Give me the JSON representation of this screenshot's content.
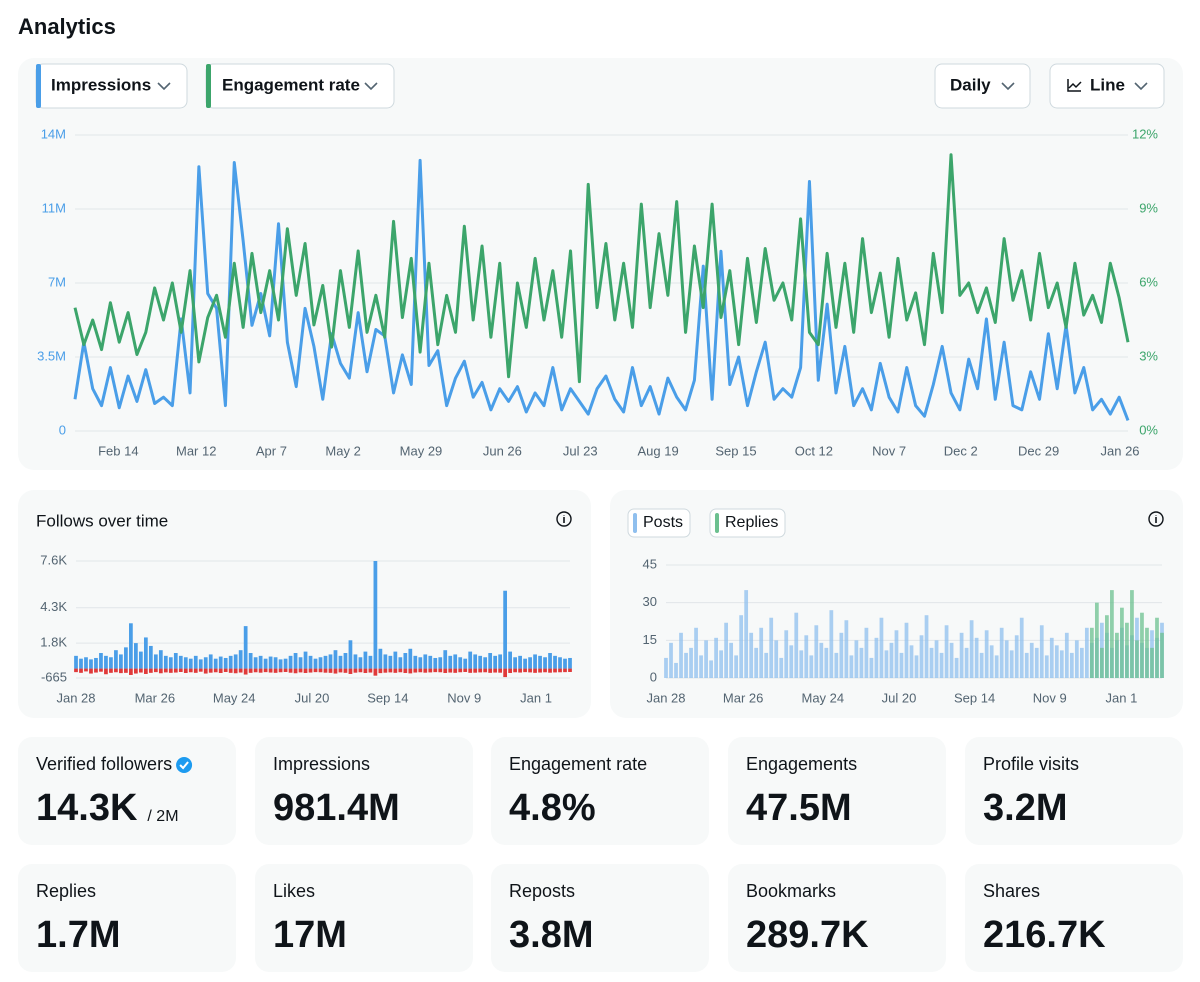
{
  "header": {
    "title": "Analytics"
  },
  "controls": {
    "interval": "Daily",
    "view": "Line"
  },
  "chart_data": [
    {
      "type": "line",
      "series": [
        {
          "name": "Impressions",
          "color": "#4a9ee8",
          "values": [
            1.5,
            4.2,
            2.0,
            1.2,
            3.0,
            1.1,
            2.6,
            1.4,
            2.9,
            1.3,
            1.6,
            1.2,
            5.3,
            1.8,
            12.5,
            6.5,
            5.8,
            1.2,
            12.7,
            9.0,
            5.0,
            6.5,
            4.5,
            9.8,
            4.2,
            2.1,
            5.8,
            4.0,
            1.5,
            4.6,
            3.2,
            2.5,
            5.6,
            2.8,
            4.8,
            4.5,
            1.8,
            3.6,
            2.2,
            12.8,
            3.1,
            3.8,
            1.2,
            2.5,
            3.3,
            1.6,
            2.3,
            1.0,
            2.0,
            1.4,
            2.1,
            0.9,
            1.8,
            1.2,
            3.0,
            1.0,
            2.0,
            1.4,
            0.8,
            2.0,
            2.6,
            1.5,
            0.9,
            3.0,
            1.2,
            2.1,
            0.8,
            2.5,
            1.6,
            1.0,
            2.4,
            7.8,
            1.5,
            8.5,
            2.2,
            3.5,
            1.2,
            2.8,
            4.2,
            1.5,
            2.0,
            1.6,
            3.0,
            11.8,
            2.4,
            6.0,
            1.8,
            4.0,
            1.2,
            2.0,
            1.0,
            3.2,
            1.6,
            0.9,
            3.0,
            1.2,
            0.7,
            2.2,
            4.0,
            1.8,
            1.0,
            3.4,
            2.0,
            5.3,
            1.5,
            4.2,
            1.2,
            1.0,
            2.8,
            1.5,
            4.6,
            2.0,
            5.0,
            1.8,
            3.0,
            1.0,
            1.5,
            0.8,
            1.6,
            0.5
          ]
        },
        {
          "name": "Engagement rate",
          "color": "#3ca56b",
          "axis": "y2",
          "values": [
            5.0,
            3.5,
            4.5,
            3.3,
            5.2,
            3.6,
            4.8,
            3.1,
            4.0,
            5.8,
            4.5,
            6.0,
            4.0,
            6.5,
            2.8,
            4.6,
            5.5,
            3.8,
            6.8,
            4.2,
            7.2,
            4.8,
            6.5,
            4.5,
            8.2,
            5.5,
            7.6,
            4.3,
            5.9,
            3.4,
            6.5,
            4.2,
            7.3,
            4.0,
            5.5,
            3.8,
            8.5,
            4.6,
            7.0,
            3.2,
            6.8,
            3.5,
            5.5,
            4.0,
            8.3,
            4.5,
            7.5,
            3.8,
            6.8,
            2.2,
            6.0,
            4.2,
            7.0,
            4.5,
            6.5,
            3.8,
            7.3,
            2.0,
            10.0,
            5.0,
            7.6,
            4.5,
            6.8,
            4.2,
            9.2,
            5.0,
            8.0,
            5.5,
            9.3,
            4.0,
            7.5,
            5.0,
            9.2,
            4.6,
            6.5,
            3.5,
            7.0,
            4.4,
            7.4,
            5.3,
            6.0,
            4.5,
            8.6,
            4.0,
            3.5,
            7.2,
            4.2,
            6.8,
            4.0,
            7.8,
            4.8,
            6.4,
            3.8,
            7.0,
            4.5,
            5.6,
            3.5,
            7.2,
            4.8,
            11.2,
            5.5,
            6.0,
            4.8,
            5.8,
            4.4,
            7.8,
            5.3,
            6.5,
            4.5,
            7.2,
            5.0,
            6.0,
            4.2,
            6.8,
            4.7,
            5.5,
            4.4,
            6.8,
            5.4,
            3.6
          ]
        }
      ],
      "ylim": [
        0,
        14
      ],
      "yticks": [
        0,
        {
          "value": 3.5,
          "label": "3.5M"
        },
        {
          "value": 7,
          "label": "7M"
        },
        {
          "value": 10.5,
          "label": "11M"
        },
        {
          "value": 14,
          "label": "14M"
        }
      ],
      "y2lim": [
        0,
        12
      ],
      "y2ticks": [
        {
          "value": 0,
          "label": "0%"
        },
        {
          "value": 3,
          "label": "3%"
        },
        {
          "value": 6,
          "label": "6%"
        },
        {
          "value": 9,
          "label": "9%"
        },
        {
          "value": 12,
          "label": "12%"
        }
      ],
      "xticks": [
        {
          "value": 4.9,
          "label": "Feb 14"
        },
        {
          "value": 13.7,
          "label": "Mar 12"
        },
        {
          "value": 22.2,
          "label": "Apr 7"
        },
        {
          "value": 30.3,
          "label": "May 2"
        },
        {
          "value": 39.1,
          "label": "May 29"
        },
        {
          "value": 48.3,
          "label": "Jun 26"
        },
        {
          "value": 57.1,
          "label": "Jul 23"
        },
        {
          "value": 65.9,
          "label": "Aug 19"
        },
        {
          "value": 74.7,
          "label": "Sep 15"
        },
        {
          "value": 83.5,
          "label": "Oct 12"
        },
        {
          "value": 92.0,
          "label": "Nov 7"
        },
        {
          "value": 100.1,
          "label": "Dec 2"
        },
        {
          "value": 108.9,
          "label": "Dec 29"
        },
        {
          "value": 118.1,
          "label": "Jan 26"
        }
      ],
      "grid": true
    },
    {
      "type": "bar",
      "title": "Follows over time",
      "series": [
        {
          "color": "#4a9ee8",
          "values": [
            900,
            700,
            800,
            650,
            750,
            1100,
            900,
            800,
            1300,
            1000,
            1500,
            3200,
            1800,
            1200,
            2200,
            1600,
            1000,
            1300,
            900,
            800,
            1100,
            900,
            800,
            700,
            900,
            650,
            800,
            1000,
            700,
            850,
            750,
            900,
            1000,
            1300,
            3000,
            1100,
            800,
            900,
            700,
            850,
            800,
            650,
            700,
            900,
            1100,
            800,
            1200,
            900,
            700,
            800,
            900,
            1000,
            1300,
            900,
            1100,
            2000,
            1000,
            800,
            1200,
            900,
            7600,
            1400,
            1000,
            900,
            1200,
            800,
            1100,
            1400,
            900,
            800,
            1000,
            900,
            750,
            800,
            1300,
            900,
            1000,
            800,
            700,
            1200,
            1000,
            900,
            800,
            1100,
            900,
            1000,
            5500,
            1200,
            800,
            900,
            700,
            800,
            1000,
            900,
            800,
            1100,
            900,
            800,
            700,
            750
          ]
        },
        {
          "color": "#e03a3a",
          "values": [
            -250,
            -300,
            -200,
            -350,
            -280,
            -220,
            -400,
            -300,
            -260,
            -320,
            -300,
            -450,
            -350,
            -280,
            -380,
            -300,
            -250,
            -330,
            -270,
            -300,
            -280,
            -240,
            -310,
            -260,
            -300,
            -220,
            -350,
            -290,
            -260,
            -310,
            -240,
            -300,
            -330,
            -280,
            -420,
            -300,
            -260,
            -290,
            -250,
            -280,
            -300,
            -260,
            -240,
            -290,
            -330,
            -270,
            -310,
            -280,
            -250,
            -260,
            -290,
            -300,
            -350,
            -270,
            -300,
            -380,
            -290,
            -260,
            -310,
            -280,
            -500,
            -320,
            -290,
            -270,
            -300,
            -260,
            -310,
            -340,
            -280,
            -260,
            -290,
            -270,
            -250,
            -260,
            -310,
            -280,
            -300,
            -260,
            -240,
            -300,
            -290,
            -270,
            -260,
            -300,
            -280,
            -290,
            -600,
            -310,
            -260,
            -280,
            -250,
            -270,
            -300,
            -280,
            -260,
            -290,
            -270,
            -260,
            -250,
            -240
          ]
        }
      ],
      "ylim": [
        -665,
        7600
      ],
      "yticks": [
        {
          "value": -665,
          "label": "-665"
        },
        {
          "value": 1800,
          "label": "1.8K"
        },
        {
          "value": 4300,
          "label": "4.3K"
        },
        {
          "value": 7600,
          "label": "7.6K"
        }
      ],
      "xticks": [
        {
          "value": 0,
          "label": "Jan 28"
        },
        {
          "value": 15.8,
          "label": "Mar 26"
        },
        {
          "value": 31.7,
          "label": "May 24"
        },
        {
          "value": 47.3,
          "label": "Jul 20"
        },
        {
          "value": 62.5,
          "label": "Sep 14"
        },
        {
          "value": 77.8,
          "label": "Nov 9"
        },
        {
          "value": 92.2,
          "label": "Jan 1"
        }
      ],
      "grid": true
    },
    {
      "type": "bar",
      "series": [
        {
          "name": "Posts",
          "color": "#8fbfee",
          "values": [
            8,
            14,
            6,
            18,
            10,
            12,
            20,
            9,
            15,
            7,
            16,
            11,
            22,
            14,
            9,
            25,
            35,
            18,
            12,
            20,
            10,
            24,
            15,
            8,
            19,
            13,
            26,
            11,
            17,
            9,
            21,
            14,
            12,
            27,
            10,
            18,
            23,
            9,
            15,
            12,
            20,
            8,
            16,
            24,
            11,
            14,
            19,
            10,
            22,
            13,
            9,
            17,
            25,
            12,
            15,
            10,
            21,
            14,
            8,
            18,
            12,
            23,
            16,
            10,
            19,
            13,
            9,
            20,
            15,
            11,
            17,
            24,
            10,
            14,
            12,
            21,
            9,
            16,
            13,
            11,
            18,
            10,
            15,
            12,
            20,
            14,
            16,
            22,
            18,
            12,
            15,
            20,
            13,
            17,
            24,
            14,
            12,
            19,
            16,
            22
          ]
        },
        {
          "name": "Replies",
          "color": "#6cc08f",
          "values": [
            0,
            0,
            0,
            0,
            0,
            0,
            0,
            0,
            0,
            0,
            0,
            0,
            0,
            0,
            0,
            0,
            0,
            0,
            0,
            0,
            0,
            0,
            0,
            0,
            0,
            0,
            0,
            0,
            0,
            0,
            0,
            0,
            0,
            0,
            0,
            0,
            0,
            0,
            0,
            0,
            0,
            0,
            0,
            0,
            0,
            0,
            0,
            0,
            0,
            0,
            0,
            0,
            0,
            0,
            0,
            0,
            0,
            0,
            0,
            0,
            0,
            0,
            0,
            0,
            0,
            0,
            0,
            0,
            0,
            0,
            0,
            0,
            0,
            0,
            0,
            0,
            0,
            0,
            0,
            0,
            0,
            0,
            0,
            0,
            0,
            20,
            30,
            12,
            25,
            35,
            18,
            28,
            22,
            35,
            15,
            26,
            20,
            12,
            24,
            18
          ]
        }
      ],
      "ylim": [
        0,
        45
      ],
      "yticks": [
        0,
        15,
        30,
        45
      ],
      "xticks": [
        {
          "value": 0,
          "label": "Jan 28"
        },
        {
          "value": 15.4,
          "label": "Mar 26"
        },
        {
          "value": 31.3,
          "label": "May 24"
        },
        {
          "value": 46.5,
          "label": "Jul 20"
        },
        {
          "value": 61.6,
          "label": "Sep 14"
        },
        {
          "value": 76.6,
          "label": "Nov 9"
        },
        {
          "value": 90.9,
          "label": "Jan 1"
        }
      ],
      "grid": true
    }
  ],
  "stats": [
    {
      "label": "Verified followers",
      "value": "14.3K",
      "sub": "/ 2M"
    },
    {
      "label": "Impressions",
      "value": "981.4M"
    },
    {
      "label": "Engagement rate",
      "value": "4.8%"
    },
    {
      "label": "Engagements",
      "value": "47.5M"
    },
    {
      "label": "Profile visits",
      "value": "3.2M"
    },
    {
      "label": "Replies",
      "value": "1.7M"
    },
    {
      "label": "Likes",
      "value": "17M"
    },
    {
      "label": "Reposts",
      "value": "3.8M"
    },
    {
      "label": "Bookmarks",
      "value": "289.7K"
    },
    {
      "label": "Shares",
      "value": "216.7K"
    }
  ]
}
